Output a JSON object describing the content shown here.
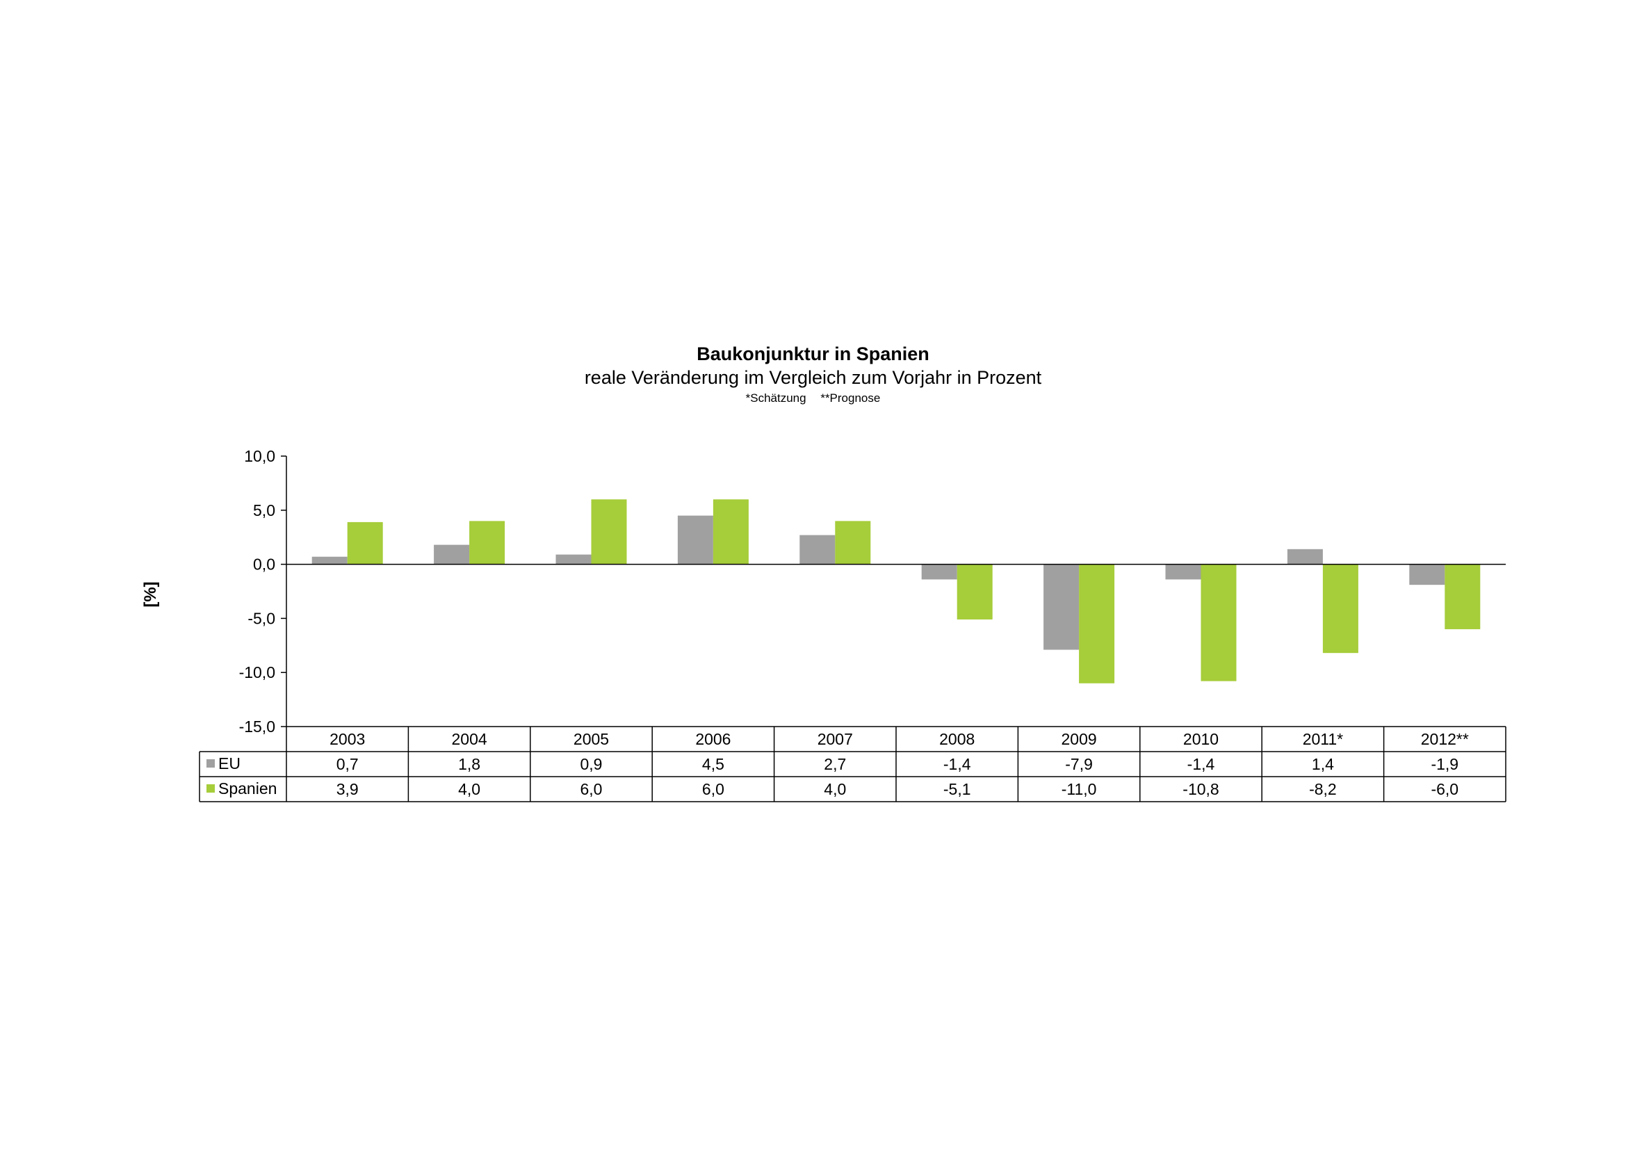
{
  "chart_data": {
    "type": "bar",
    "title": "Baukonjunktur in Spanien",
    "subtitle": "reale Veränderung im Vergleich zum Vorjahr in Prozent",
    "notes": [
      "*Schätzung",
      "**Prognose"
    ],
    "ylabel": "[%]",
    "xlabel": "",
    "ylim": [
      -15,
      10
    ],
    "yticks": [
      10,
      5,
      0,
      -5,
      -10,
      -15
    ],
    "ytick_labels": [
      "10,0",
      "5,0",
      "0,0",
      "-5,0",
      "-10,0",
      "-15,0"
    ],
    "grid": false,
    "legend": "data-table",
    "categories": [
      "2003",
      "2004",
      "2005",
      "2006",
      "2007",
      "2008",
      "2009",
      "2010",
      "2011*",
      "2012**"
    ],
    "series": [
      {
        "name": "EU",
        "color": "#a0a0a0",
        "values": [
          0.7,
          1.8,
          0.9,
          4.5,
          2.7,
          -1.4,
          -7.9,
          -1.4,
          1.4,
          -1.9
        ],
        "labels": [
          "0,7",
          "1,8",
          "0,9",
          "4,5",
          "2,7",
          "-1,4",
          "-7,9",
          "-1,4",
          "1,4",
          "-1,9"
        ]
      },
      {
        "name": "Spanien",
        "color": "#a6cd3a",
        "values": [
          3.9,
          4.0,
          6.0,
          6.0,
          4.0,
          -5.1,
          -11.0,
          -10.8,
          -8.2,
          -6.0
        ],
        "labels": [
          "3,9",
          "4,0",
          "6,0",
          "6,0",
          "4,0",
          "-5,1",
          "-11,0",
          "-10,8",
          "-8,2",
          "-6,0"
        ]
      }
    ]
  }
}
